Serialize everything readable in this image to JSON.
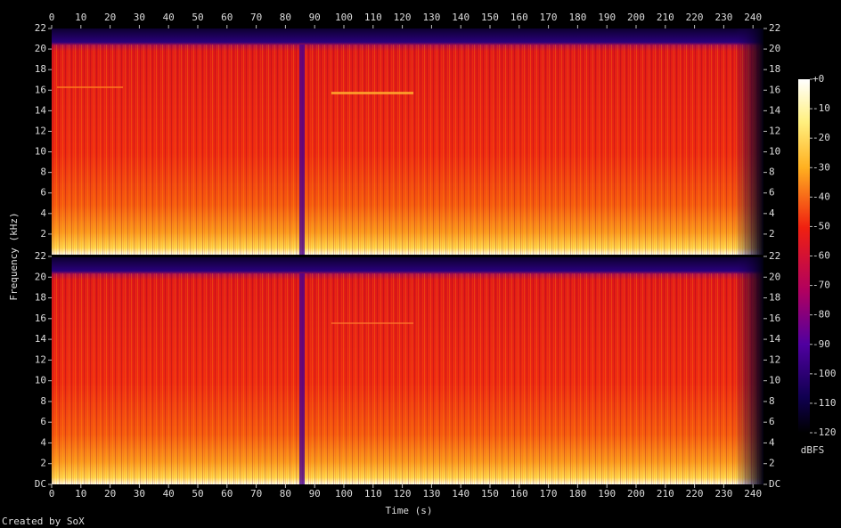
{
  "chart_data": {
    "type": "spectrogram",
    "xlabel": "Time (s)",
    "ylabel": "Frequency (kHz)",
    "colorbar_label": "dBFS",
    "credit": "Created by SoX",
    "xlim": [
      0,
      243.6
    ],
    "xticks": [
      0,
      10,
      20,
      30,
      40,
      50,
      60,
      70,
      80,
      90,
      100,
      110,
      120,
      130,
      140,
      150,
      160,
      170,
      180,
      190,
      200,
      210,
      220,
      230,
      240
    ],
    "panels": [
      {
        "ylim": [
          0,
          22
        ],
        "yticks": [
          2,
          4,
          6,
          8,
          10,
          12,
          14,
          16,
          18,
          20,
          22
        ]
      },
      {
        "ylim": [
          0,
          22
        ],
        "yticks": [
          {
            "value": 0,
            "label": "DC"
          },
          2,
          4,
          6,
          8,
          10,
          12,
          14,
          16,
          18,
          20,
          22
        ]
      }
    ],
    "clim": [
      -120,
      0
    ],
    "cticks": [
      {
        "value": 0,
        "label": "+0"
      },
      -10,
      -20,
      -30,
      -40,
      -50,
      -60,
      -70,
      -80,
      -90,
      -100,
      -110,
      -120
    ]
  }
}
